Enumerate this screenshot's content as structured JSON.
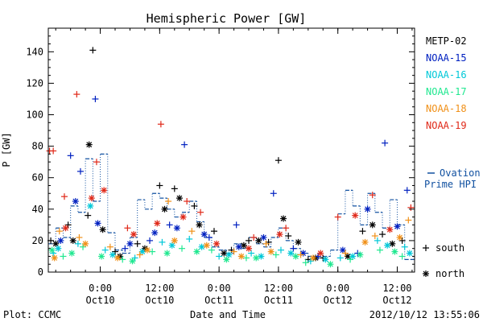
{
  "chart_data": {
    "type": "scatter",
    "title": "Hemispheric Power [GW]",
    "ylabel": "P [GW]",
    "xlabel": "Date and Time",
    "ylim": [
      0,
      155
    ],
    "xlim": [
      "2012-10-09T13:30",
      "2012-10-12T15:30"
    ],
    "y_ticks": [
      0,
      20,
      40,
      60,
      80,
      100,
      120,
      140
    ],
    "x_ticks": [
      {
        "time": "2012-10-10T00:00",
        "top": "0:00",
        "bottom": "Oct10"
      },
      {
        "time": "2012-10-10T12:00",
        "top": "12:00",
        "bottom": "Oct10"
      },
      {
        "time": "2012-10-11T00:00",
        "top": "0:00",
        "bottom": "Oct11"
      },
      {
        "time": "2012-10-11T12:00",
        "top": "12:00",
        "bottom": "Oct11"
      },
      {
        "time": "2012-10-12T00:00",
        "top": "0:00",
        "bottom": "Oct12"
      },
      {
        "time": "2012-10-12T12:00",
        "top": "12:00",
        "bottom": "Oct12"
      }
    ],
    "legend_placement": "right",
    "series": [
      {
        "name": "METP-02",
        "color": "#000000",
        "south": [
          {
            "x": "2012-10-09T14:00",
            "y": 20
          },
          {
            "x": "2012-10-09T17:30",
            "y": 30
          },
          {
            "x": "2012-10-09T21:30",
            "y": 36
          },
          {
            "x": "2012-10-09T22:30",
            "y": 141
          },
          {
            "x": "2012-10-10T03:00",
            "y": 13
          },
          {
            "x": "2012-10-10T07:30",
            "y": 18
          },
          {
            "x": "2012-10-10T12:00",
            "y": 55
          },
          {
            "x": "2012-10-10T15:00",
            "y": 53
          },
          {
            "x": "2012-10-10T19:00",
            "y": 42
          },
          {
            "x": "2012-10-10T23:00",
            "y": 26
          },
          {
            "x": "2012-10-11T02:30",
            "y": 14
          },
          {
            "x": "2012-10-11T06:00",
            "y": 20
          },
          {
            "x": "2012-10-11T10:00",
            "y": 19
          },
          {
            "x": "2012-10-11T12:00",
            "y": 71
          },
          {
            "x": "2012-10-11T14:00",
            "y": 23
          },
          {
            "x": "2012-10-11T18:00",
            "y": 8
          },
          {
            "x": "2012-10-11T21:00",
            "y": 9
          },
          {
            "x": "2012-10-12T05:00",
            "y": 26
          },
          {
            "x": "2012-10-12T09:00",
            "y": 24
          },
          {
            "x": "2012-10-12T13:00",
            "y": 20
          }
        ],
        "north": [
          {
            "x": "2012-10-09T15:00",
            "y": 18
          },
          {
            "x": "2012-10-09T18:30",
            "y": 20
          },
          {
            "x": "2012-10-09T21:45",
            "y": 81
          },
          {
            "x": "2012-10-10T00:30",
            "y": 27
          },
          {
            "x": "2012-10-10T04:00",
            "y": 10
          },
          {
            "x": "2012-10-10T09:00",
            "y": 15
          },
          {
            "x": "2012-10-10T13:00",
            "y": 40
          },
          {
            "x": "2012-10-10T16:00",
            "y": 47
          },
          {
            "x": "2012-10-10T20:00",
            "y": 30
          },
          {
            "x": "2012-10-11T01:00",
            "y": 12
          },
          {
            "x": "2012-10-11T05:00",
            "y": 17
          },
          {
            "x": "2012-10-11T08:00",
            "y": 20
          },
          {
            "x": "2012-10-11T13:00",
            "y": 34
          },
          {
            "x": "2012-10-11T16:00",
            "y": 19
          },
          {
            "x": "2012-10-11T19:30",
            "y": 9
          },
          {
            "x": "2012-10-12T02:00",
            "y": 10
          },
          {
            "x": "2012-10-12T07:00",
            "y": 30
          },
          {
            "x": "2012-10-12T11:00",
            "y": 18
          }
        ]
      },
      {
        "name": "NOAA-15",
        "color": "#0020c0",
        "south": [
          {
            "x": "2012-10-09T18:00",
            "y": 74
          },
          {
            "x": "2012-10-09T20:00",
            "y": 64
          },
          {
            "x": "2012-10-09T23:00",
            "y": 110
          },
          {
            "x": "2012-10-10T05:00",
            "y": 15
          },
          {
            "x": "2012-10-10T10:00",
            "y": 20
          },
          {
            "x": "2012-10-10T14:00",
            "y": 30
          },
          {
            "x": "2012-10-10T17:00",
            "y": 81
          },
          {
            "x": "2012-10-10T22:00",
            "y": 22
          },
          {
            "x": "2012-10-11T03:30",
            "y": 30
          },
          {
            "x": "2012-10-11T11:00",
            "y": 50
          },
          {
            "x": "2012-10-11T15:00",
            "y": 15
          },
          {
            "x": "2012-10-11T20:00",
            "y": 10
          },
          {
            "x": "2012-10-12T04:00",
            "y": 12
          },
          {
            "x": "2012-10-12T09:30",
            "y": 82
          },
          {
            "x": "2012-10-12T14:00",
            "y": 52
          }
        ],
        "north": [
          {
            "x": "2012-10-09T16:00",
            "y": 20
          },
          {
            "x": "2012-10-09T19:00",
            "y": 45
          },
          {
            "x": "2012-10-09T23:30",
            "y": 31
          },
          {
            "x": "2012-10-10T06:00",
            "y": 18
          },
          {
            "x": "2012-10-10T11:00",
            "y": 25
          },
          {
            "x": "2012-10-10T15:30",
            "y": 28
          },
          {
            "x": "2012-10-10T21:00",
            "y": 24
          },
          {
            "x": "2012-10-11T04:00",
            "y": 16
          },
          {
            "x": "2012-10-11T09:00",
            "y": 22
          },
          {
            "x": "2012-10-11T17:00",
            "y": 12
          },
          {
            "x": "2012-10-12T01:00",
            "y": 14
          },
          {
            "x": "2012-10-12T06:00",
            "y": 40
          },
          {
            "x": "2012-10-12T12:00",
            "y": 29
          }
        ]
      },
      {
        "name": "NOAA-16",
        "color": "#00c8d8",
        "south": [
          {
            "x": "2012-10-09T14:30",
            "y": 12
          },
          {
            "x": "2012-10-09T19:30",
            "y": 18
          },
          {
            "x": "2012-10-10T01:00",
            "y": 14
          },
          {
            "x": "2012-10-10T07:00",
            "y": 9
          },
          {
            "x": "2012-10-10T12:30",
            "y": 19
          },
          {
            "x": "2012-10-10T18:00",
            "y": 21
          },
          {
            "x": "2012-10-11T00:00",
            "y": 10
          },
          {
            "x": "2012-10-11T06:30",
            "y": 12
          },
          {
            "x": "2012-10-11T12:30",
            "y": 14
          },
          {
            "x": "2012-10-11T18:30",
            "y": 7
          },
          {
            "x": "2012-10-12T00:30",
            "y": 9
          },
          {
            "x": "2012-10-12T08:00",
            "y": 20
          },
          {
            "x": "2012-10-12T13:30",
            "y": 16
          }
        ],
        "north": [
          {
            "x": "2012-10-09T15:30",
            "y": 15
          },
          {
            "x": "2012-10-09T22:00",
            "y": 42
          },
          {
            "x": "2012-10-10T02:30",
            "y": 11
          },
          {
            "x": "2012-10-10T08:30",
            "y": 13
          },
          {
            "x": "2012-10-10T14:30",
            "y": 17
          },
          {
            "x": "2012-10-10T20:30",
            "y": 16
          },
          {
            "x": "2012-10-11T02:00",
            "y": 11
          },
          {
            "x": "2012-10-11T08:30",
            "y": 10
          },
          {
            "x": "2012-10-11T14:30",
            "y": 12
          },
          {
            "x": "2012-10-11T21:30",
            "y": 8
          },
          {
            "x": "2012-10-12T03:00",
            "y": 10
          },
          {
            "x": "2012-10-12T10:00",
            "y": 17
          },
          {
            "x": "2012-10-12T14:30",
            "y": 12
          }
        ]
      },
      {
        "name": "NOAA-17",
        "color": "#20e890",
        "south": [
          {
            "x": "2012-10-09T16:30",
            "y": 10
          },
          {
            "x": "2012-10-09T20:30",
            "y": 16
          },
          {
            "x": "2012-10-10T04:30",
            "y": 8
          },
          {
            "x": "2012-10-10T10:30",
            "y": 13
          },
          {
            "x": "2012-10-10T16:30",
            "y": 15
          },
          {
            "x": "2012-10-10T22:30",
            "y": 14
          },
          {
            "x": "2012-10-11T05:30",
            "y": 9
          },
          {
            "x": "2012-10-11T11:30",
            "y": 11
          },
          {
            "x": "2012-10-11T17:30",
            "y": 6
          },
          {
            "x": "2012-10-12T02:30",
            "y": 8
          },
          {
            "x": "2012-10-12T08:30",
            "y": 14
          },
          {
            "x": "2012-10-12T13:00",
            "y": 10
          }
        ],
        "north": [
          {
            "x": "2012-10-09T14:15",
            "y": 14
          },
          {
            "x": "2012-10-09T18:15",
            "y": 12
          },
          {
            "x": "2012-10-10T00:15",
            "y": 10
          },
          {
            "x": "2012-10-10T06:30",
            "y": 7
          },
          {
            "x": "2012-10-10T13:30",
            "y": 12
          },
          {
            "x": "2012-10-10T19:30",
            "y": 13
          },
          {
            "x": "2012-10-11T01:30",
            "y": 8
          },
          {
            "x": "2012-10-11T07:30",
            "y": 9
          },
          {
            "x": "2012-10-11T15:30",
            "y": 10
          },
          {
            "x": "2012-10-11T22:30",
            "y": 5
          },
          {
            "x": "2012-10-12T04:30",
            "y": 11
          },
          {
            "x": "2012-10-12T11:30",
            "y": 13
          }
        ]
      },
      {
        "name": "NOAA-18",
        "color": "#f09018",
        "south": [
          {
            "x": "2012-10-09T15:45",
            "y": 26
          },
          {
            "x": "2012-10-09T19:45",
            "y": 22
          },
          {
            "x": "2012-10-10T02:00",
            "y": 16
          },
          {
            "x": "2012-10-10T08:00",
            "y": 11
          },
          {
            "x": "2012-10-10T13:45",
            "y": 45
          },
          {
            "x": "2012-10-10T18:30",
            "y": 26
          },
          {
            "x": "2012-10-11T03:00",
            "y": 13
          },
          {
            "x": "2012-10-11T09:30",
            "y": 18
          },
          {
            "x": "2012-10-11T16:30",
            "y": 11
          },
          {
            "x": "2012-10-12T01:30",
            "y": 12
          },
          {
            "x": "2012-10-12T07:30",
            "y": 23
          },
          {
            "x": "2012-10-12T14:15",
            "y": 33
          }
        ],
        "north": [
          {
            "x": "2012-10-09T14:45",
            "y": 9
          },
          {
            "x": "2012-10-09T21:00",
            "y": 18
          },
          {
            "x": "2012-10-10T03:30",
            "y": 9
          },
          {
            "x": "2012-10-10T09:30",
            "y": 14
          },
          {
            "x": "2012-10-10T15:00",
            "y": 20
          },
          {
            "x": "2012-10-10T21:30",
            "y": 17
          },
          {
            "x": "2012-10-11T04:30",
            "y": 10
          },
          {
            "x": "2012-10-11T10:30",
            "y": 13
          },
          {
            "x": "2012-10-11T19:00",
            "y": 9
          },
          {
            "x": "2012-10-12T05:30",
            "y": 19
          },
          {
            "x": "2012-10-12T12:30",
            "y": 22
          }
        ]
      },
      {
        "name": "NOAA-19",
        "color": "#e02818",
        "south": [
          {
            "x": "2012-10-09T13:45",
            "y": 77
          },
          {
            "x": "2012-10-09T14:30",
            "y": 77
          },
          {
            "x": "2012-10-09T16:45",
            "y": 48
          },
          {
            "x": "2012-10-09T19:15",
            "y": 113
          },
          {
            "x": "2012-10-09T23:15",
            "y": 70
          },
          {
            "x": "2012-10-10T05:30",
            "y": 28
          },
          {
            "x": "2012-10-10T12:15",
            "y": 94
          },
          {
            "x": "2012-10-10T17:30",
            "y": 45
          },
          {
            "x": "2012-10-10T20:15",
            "y": 38
          },
          {
            "x": "2012-10-11T07:00",
            "y": 22
          },
          {
            "x": "2012-10-11T13:30",
            "y": 28
          },
          {
            "x": "2012-10-12T00:00",
            "y": 35
          },
          {
            "x": "2012-10-12T07:00",
            "y": 49
          },
          {
            "x": "2012-10-12T14:45",
            "y": 41
          }
        ],
        "north": [
          {
            "x": "2012-10-09T17:00",
            "y": 28
          },
          {
            "x": "2012-10-09T22:15",
            "y": 47
          },
          {
            "x": "2012-10-10T00:45",
            "y": 52
          },
          {
            "x": "2012-10-10T06:45",
            "y": 24
          },
          {
            "x": "2012-10-10T11:30",
            "y": 31
          },
          {
            "x": "2012-10-10T16:45",
            "y": 35
          },
          {
            "x": "2012-10-10T23:30",
            "y": 18
          },
          {
            "x": "2012-10-11T06:00",
            "y": 15
          },
          {
            "x": "2012-10-11T12:15",
            "y": 24
          },
          {
            "x": "2012-10-11T20:30",
            "y": 12
          },
          {
            "x": "2012-10-12T03:30",
            "y": 36
          },
          {
            "x": "2012-10-12T10:30",
            "y": 27
          }
        ]
      }
    ],
    "ovation_prime": {
      "name": "Ovation Prime HPI",
      "line_label": "Ovation",
      "line_label_2": "Prime HPI",
      "color": "#1050a0",
      "steps": [
        {
          "x": "2012-10-09T13:30",
          "y": 18
        },
        {
          "x": "2012-10-09T15:00",
          "y": 28
        },
        {
          "x": "2012-10-09T16:30",
          "y": 22
        },
        {
          "x": "2012-10-09T18:00",
          "y": 42
        },
        {
          "x": "2012-10-09T19:30",
          "y": 38
        },
        {
          "x": "2012-10-09T21:00",
          "y": 72
        },
        {
          "x": "2012-10-09T22:30",
          "y": 45
        },
        {
          "x": "2012-10-10T00:00",
          "y": 75
        },
        {
          "x": "2012-10-10T01:30",
          "y": 25
        },
        {
          "x": "2012-10-10T03:00",
          "y": 14
        },
        {
          "x": "2012-10-10T04:30",
          "y": 12
        },
        {
          "x": "2012-10-10T06:00",
          "y": 22
        },
        {
          "x": "2012-10-10T07:30",
          "y": 46
        },
        {
          "x": "2012-10-10T09:00",
          "y": 40
        },
        {
          "x": "2012-10-10T10:30",
          "y": 50
        },
        {
          "x": "2012-10-10T12:00",
          "y": 47
        },
        {
          "x": "2012-10-10T13:30",
          "y": 40
        },
        {
          "x": "2012-10-10T15:00",
          "y": 35
        },
        {
          "x": "2012-10-10T16:30",
          "y": 38
        },
        {
          "x": "2012-10-10T18:00",
          "y": 45
        },
        {
          "x": "2012-10-10T19:30",
          "y": 32
        },
        {
          "x": "2012-10-10T21:00",
          "y": 22
        },
        {
          "x": "2012-10-10T22:30",
          "y": 16
        },
        {
          "x": "2012-10-11T00:00",
          "y": 14
        },
        {
          "x": "2012-10-11T01:30",
          "y": 12
        },
        {
          "x": "2012-10-11T03:00",
          "y": 18
        },
        {
          "x": "2012-10-11T04:30",
          "y": 15
        },
        {
          "x": "2012-10-11T06:00",
          "y": 22
        },
        {
          "x": "2012-10-11T07:30",
          "y": 18
        },
        {
          "x": "2012-10-11T09:00",
          "y": 16
        },
        {
          "x": "2012-10-11T10:30",
          "y": 22
        },
        {
          "x": "2012-10-11T12:00",
          "y": 28
        },
        {
          "x": "2012-10-11T13:30",
          "y": 20
        },
        {
          "x": "2012-10-11T15:00",
          "y": 15
        },
        {
          "x": "2012-10-11T16:30",
          "y": 12
        },
        {
          "x": "2012-10-11T18:00",
          "y": 10
        },
        {
          "x": "2012-10-11T19:30",
          "y": 9
        },
        {
          "x": "2012-10-11T21:00",
          "y": 10
        },
        {
          "x": "2012-10-11T22:30",
          "y": 14
        },
        {
          "x": "2012-10-12T00:00",
          "y": 37
        },
        {
          "x": "2012-10-12T01:30",
          "y": 52
        },
        {
          "x": "2012-10-12T03:00",
          "y": 42
        },
        {
          "x": "2012-10-12T04:30",
          "y": 30
        },
        {
          "x": "2012-10-12T06:00",
          "y": 50
        },
        {
          "x": "2012-10-12T07:30",
          "y": 38
        },
        {
          "x": "2012-10-12T09:00",
          "y": 28
        },
        {
          "x": "2012-10-12T10:30",
          "y": 46
        },
        {
          "x": "2012-10-12T12:00",
          "y": 30
        },
        {
          "x": "2012-10-12T13:30",
          "y": 8
        },
        {
          "x": "2012-10-12T15:30",
          "y": 8
        }
      ]
    },
    "marker_legend": {
      "south": "south",
      "north": "north"
    },
    "footer": {
      "left": "Plot: CCMC",
      "center": "Date and Time",
      "right": "2012/10/12 13:55:06"
    }
  }
}
